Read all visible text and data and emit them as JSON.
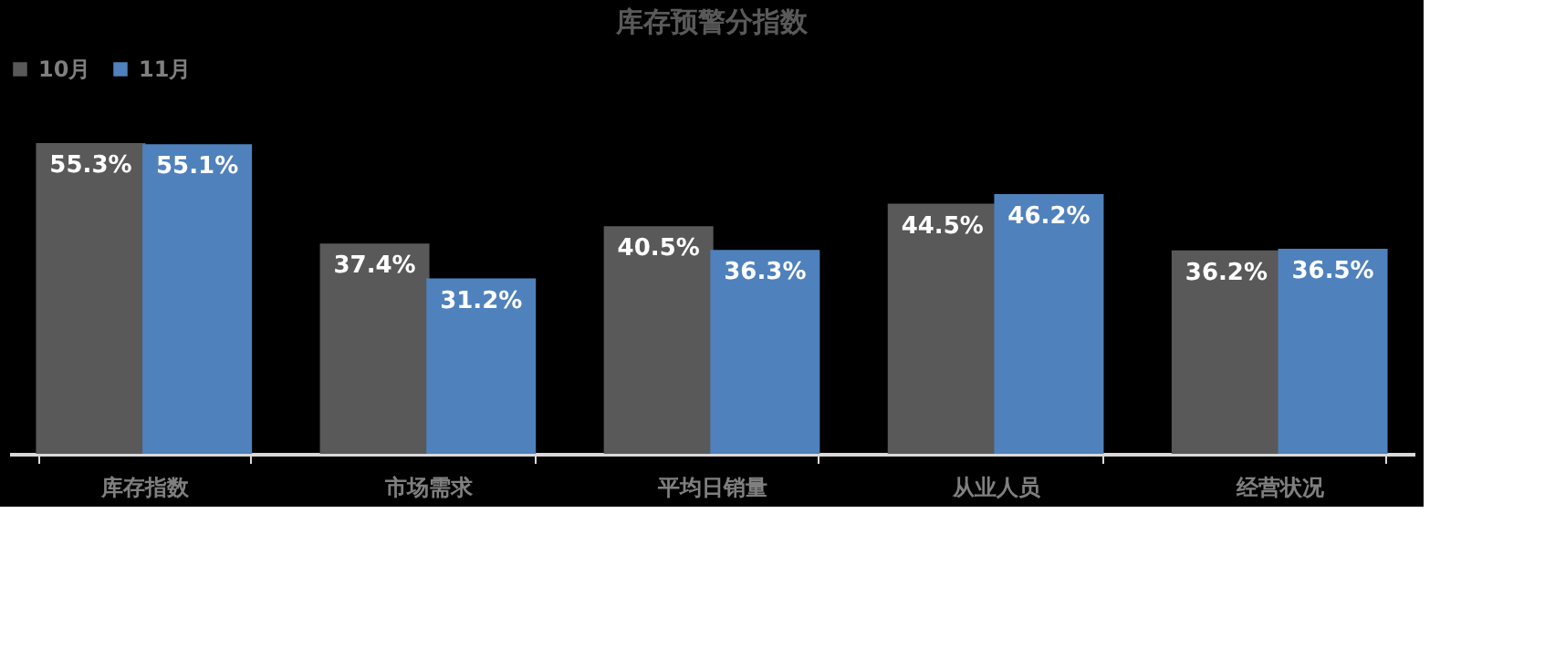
{
  "chart_data": {
    "type": "bar",
    "title": "库存预警分指数",
    "categories": [
      "库存指数",
      "市场需求",
      "平均日销量",
      "从业人员",
      "经营状况"
    ],
    "series": [
      {
        "name": "10月",
        "color": "#595959",
        "values": [
          55.3,
          37.4,
          40.5,
          44.5,
          36.2
        ],
        "value_labels": [
          "55.3%",
          "37.4%",
          "40.5%",
          "44.5%",
          "36.2%"
        ]
      },
      {
        "name": "11月",
        "color": "#4f81bd",
        "values": [
          55.1,
          31.2,
          36.3,
          46.2,
          36.5
        ],
        "value_labels": [
          "55.1%",
          "31.2%",
          "36.3%",
          "46.2%",
          "36.5%"
        ]
      }
    ],
    "legend": "top",
    "grid": false,
    "tick_labels": "x"
  }
}
